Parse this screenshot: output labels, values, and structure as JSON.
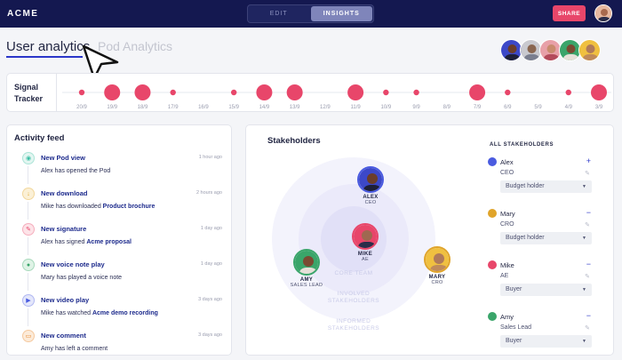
{
  "topbar": {
    "brand": "ACME",
    "tabs": [
      {
        "label": "EDIT",
        "active": false
      },
      {
        "label": "INSIGHTS",
        "active": true
      }
    ],
    "share_label": "SHARE"
  },
  "header": {
    "tab_user": "User analytics",
    "tab_pod": "Pod Analytics"
  },
  "tracker": {
    "label": "Signal Tracker",
    "dates": [
      "20/9",
      "19/9",
      "18/9",
      "17/9",
      "16/9",
      "15/9",
      "14/9",
      "13/9",
      "12/9",
      "11/9",
      "10/9",
      "9/9",
      "8/9",
      "7/9",
      "6/9",
      "5/9",
      "4/9",
      "3/9"
    ],
    "signals": [
      "small",
      "large",
      "large",
      "small",
      "none",
      "small",
      "large",
      "large",
      "none",
      "large",
      "small",
      "small",
      "none",
      "large",
      "small",
      "none",
      "small",
      "large"
    ]
  },
  "feed": {
    "title": "Activity feed",
    "items": [
      {
        "icon": "eye-icon",
        "color": "#3bbfa5",
        "bg": "#e3f6f1",
        "head": "New Pod view",
        "time": "1 hour ago",
        "desc": "Alex has opened the Pod",
        "bold": ""
      },
      {
        "icon": "download-icon",
        "color": "#e0a42a",
        "bg": "#fbf0d6",
        "head": "New download",
        "time": "2 hours ago",
        "desc": "Mike has downloaded ",
        "bold": "Product brochure"
      },
      {
        "icon": "signature-icon",
        "color": "#e8466a",
        "bg": "#fde3e8",
        "head": "New signature",
        "time": "1 day ago",
        "desc": "Alex has signed ",
        "bold": "Acme proposal"
      },
      {
        "icon": "mic-icon",
        "color": "#3aa56a",
        "bg": "#dff3e6",
        "head": "New voice note play",
        "time": "1 day ago",
        "desc": "Mary has played a voice note",
        "bold": ""
      },
      {
        "icon": "video-icon",
        "color": "#4a5be0",
        "bg": "#e4e7fb",
        "head": "New video play",
        "time": "3 days ago",
        "desc": "Mike has watched ",
        "bold": "Acme demo recording"
      },
      {
        "icon": "comment-icon",
        "color": "#e8862c",
        "bg": "#fcebd9",
        "head": "New comment",
        "time": "3 days ago",
        "desc": "Amy has left a comment",
        "bold": ""
      }
    ]
  },
  "stakeholders": {
    "title": "Stakeholders",
    "rings": {
      "core": "CORE TEAM",
      "involved": "INVOLVED STAKEHOLDERS",
      "informed": "INFORMED STAKEHOLDERS"
    },
    "people": [
      {
        "name": "ALEX",
        "role": "CEO"
      },
      {
        "name": "MIKE",
        "role": "AE"
      },
      {
        "name": "AMY",
        "role": "SALES LEAD"
      },
      {
        "name": "MARY",
        "role": "CRO"
      }
    ],
    "all_title": "ALL STAKEHOLDERS",
    "list": [
      {
        "name": "Alex",
        "role": "CEO",
        "select": "Budget holder",
        "ctrl": "+",
        "color": "#4a5be0"
      },
      {
        "name": "Mary",
        "role": "CRO",
        "select": "Budget holder",
        "ctrl": "−",
        "color": "#e0a42a"
      },
      {
        "name": "Mike",
        "role": "AE",
        "select": "Buyer",
        "ctrl": "−",
        "color": "#e8466a"
      },
      {
        "name": "Amy",
        "role": "Sales Lead",
        "select": "Buyer",
        "ctrl": "−",
        "color": "#3aa56a"
      }
    ]
  },
  "colors": {
    "navy": "#141850",
    "accent": "#e8466a",
    "primary": "#2b36c9"
  }
}
